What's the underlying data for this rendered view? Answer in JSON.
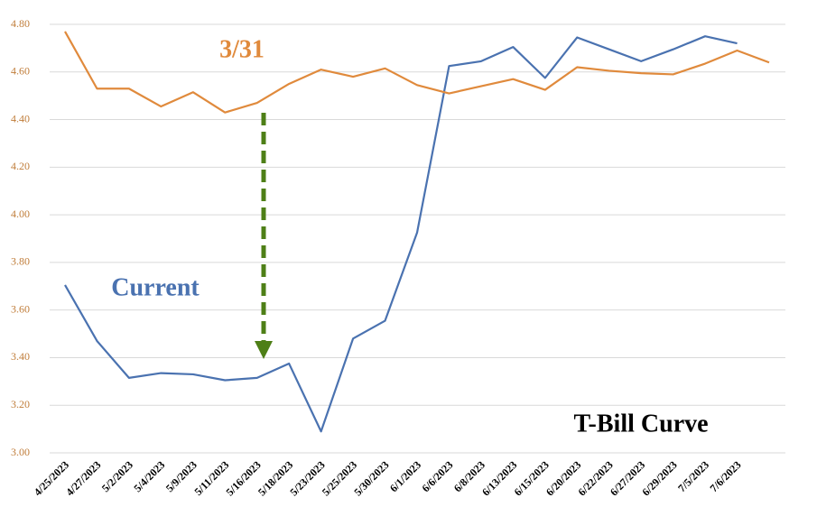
{
  "chart_data": {
    "type": "line",
    "title": "T-Bill Curve",
    "categories": [
      "4/25/2023",
      "4/27/2023",
      "5/2/2023",
      "5/4/2023",
      "5/9/2023",
      "5/11/2023",
      "5/16/2023",
      "5/18/2023",
      "5/23/2023",
      "5/25/2023",
      "5/30/2023",
      "6/1/2023",
      "6/6/2023",
      "6/8/2023",
      "6/13/2023",
      "6/15/2023",
      "6/20/2023",
      "6/22/2023",
      "6/27/2023",
      "6/29/2023",
      "7/5/2023",
      "7/6/2023",
      null
    ],
    "series": [
      {
        "name": "Current",
        "color": "#4a72b0",
        "values": [
          3.705,
          3.47,
          3.315,
          3.335,
          3.33,
          3.305,
          3.315,
          3.375,
          3.09,
          3.48,
          3.555,
          3.925,
          4.625,
          4.645,
          4.705,
          4.575,
          4.745,
          4.695,
          4.645,
          4.695,
          4.75,
          4.72,
          null
        ]
      },
      {
        "name": "3/31",
        "color": "#e08a3c",
        "values": [
          4.77,
          4.53,
          4.53,
          4.455,
          4.515,
          4.43,
          4.47,
          4.55,
          4.61,
          4.58,
          4.615,
          4.545,
          4.51,
          4.54,
          4.57,
          4.525,
          4.62,
          4.605,
          4.595,
          4.59,
          4.635,
          4.69,
          4.64
        ]
      }
    ],
    "ylim": [
      3.0,
      4.8
    ],
    "yticks": [
      {
        "value": 3.0,
        "label": "3.00"
      },
      {
        "value": 3.2,
        "label": "3.20"
      },
      {
        "value": 3.4,
        "label": "3.40"
      },
      {
        "value": 3.6,
        "label": "3.60"
      },
      {
        "value": 3.8,
        "label": "3.80"
      },
      {
        "value": 4.0,
        "label": "4.00"
      },
      {
        "value": 4.2,
        "label": "4.20"
      },
      {
        "value": 4.4,
        "label": "4.40"
      },
      {
        "value": 4.6,
        "label": "4.60"
      },
      {
        "value": 4.8,
        "label": "4.80"
      }
    ],
    "grid": true
  }
}
